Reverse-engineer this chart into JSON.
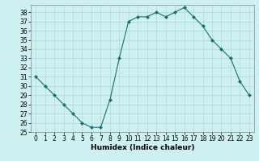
{
  "x": [
    0,
    1,
    2,
    3,
    4,
    5,
    6,
    7,
    8,
    9,
    10,
    11,
    12,
    13,
    14,
    15,
    16,
    17,
    18,
    19,
    20,
    21,
    22,
    23
  ],
  "y": [
    31,
    30,
    29,
    28,
    27,
    26,
    25.5,
    25.5,
    28.5,
    33,
    37,
    37.5,
    37.5,
    38,
    37.5,
    38,
    38.5,
    37.5,
    36.5,
    35,
    34,
    33,
    30.5,
    29
  ],
  "xlabel": "Humidex (Indice chaleur)",
  "xlim": [
    -0.5,
    23.5
  ],
  "ylim": [
    25,
    38.8
  ],
  "yticks": [
    25,
    26,
    27,
    28,
    29,
    30,
    31,
    32,
    33,
    34,
    35,
    36,
    37,
    38
  ],
  "xticks": [
    0,
    1,
    2,
    3,
    4,
    5,
    6,
    7,
    8,
    9,
    10,
    11,
    12,
    13,
    14,
    15,
    16,
    17,
    18,
    19,
    20,
    21,
    22,
    23
  ],
  "line_color": "#1a7070",
  "marker": "D",
  "marker_size": 2,
  "bg_color": "#cff0f0",
  "grid_color": "#aadada",
  "label_fontsize": 6.5,
  "tick_fontsize": 5.5
}
